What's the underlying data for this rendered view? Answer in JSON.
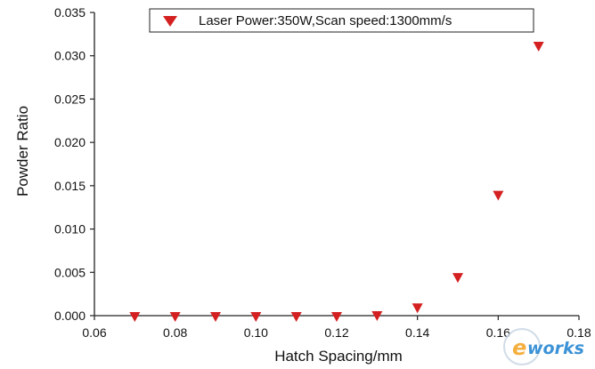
{
  "chart_data": {
    "type": "scatter",
    "title": "",
    "xlabel": "Hatch Spacing/mm",
    "ylabel": "Powder Ratio",
    "xlim": [
      0.06,
      0.18
    ],
    "ylim": [
      0.0,
      0.035
    ],
    "x_ticks": [
      "0.06",
      "0.08",
      "0.10",
      "0.12",
      "0.14",
      "0.16",
      "0.18"
    ],
    "y_ticks": [
      "0.000",
      "0.005",
      "0.010",
      "0.015",
      "0.020",
      "0.025",
      "0.030",
      "0.035"
    ],
    "grid": false,
    "legend_position": "top-right",
    "marker": "triangle-down",
    "series": [
      {
        "name": "Laser Power:350W,Scan speed:1300mm/s",
        "color": "#d42020",
        "x": [
          0.07,
          0.08,
          0.09,
          0.1,
          0.11,
          0.12,
          0.13,
          0.14,
          0.15,
          0.16,
          0.17
        ],
        "y": [
          0.0,
          0.0,
          0.0,
          0.0,
          0.0,
          0.0,
          0.0001,
          0.001,
          0.0045,
          0.014,
          0.0312
        ]
      }
    ]
  },
  "watermark": {
    "text": "e-works",
    "brand_color": "#1a7fd0",
    "accent_color": "#f3a21d"
  }
}
